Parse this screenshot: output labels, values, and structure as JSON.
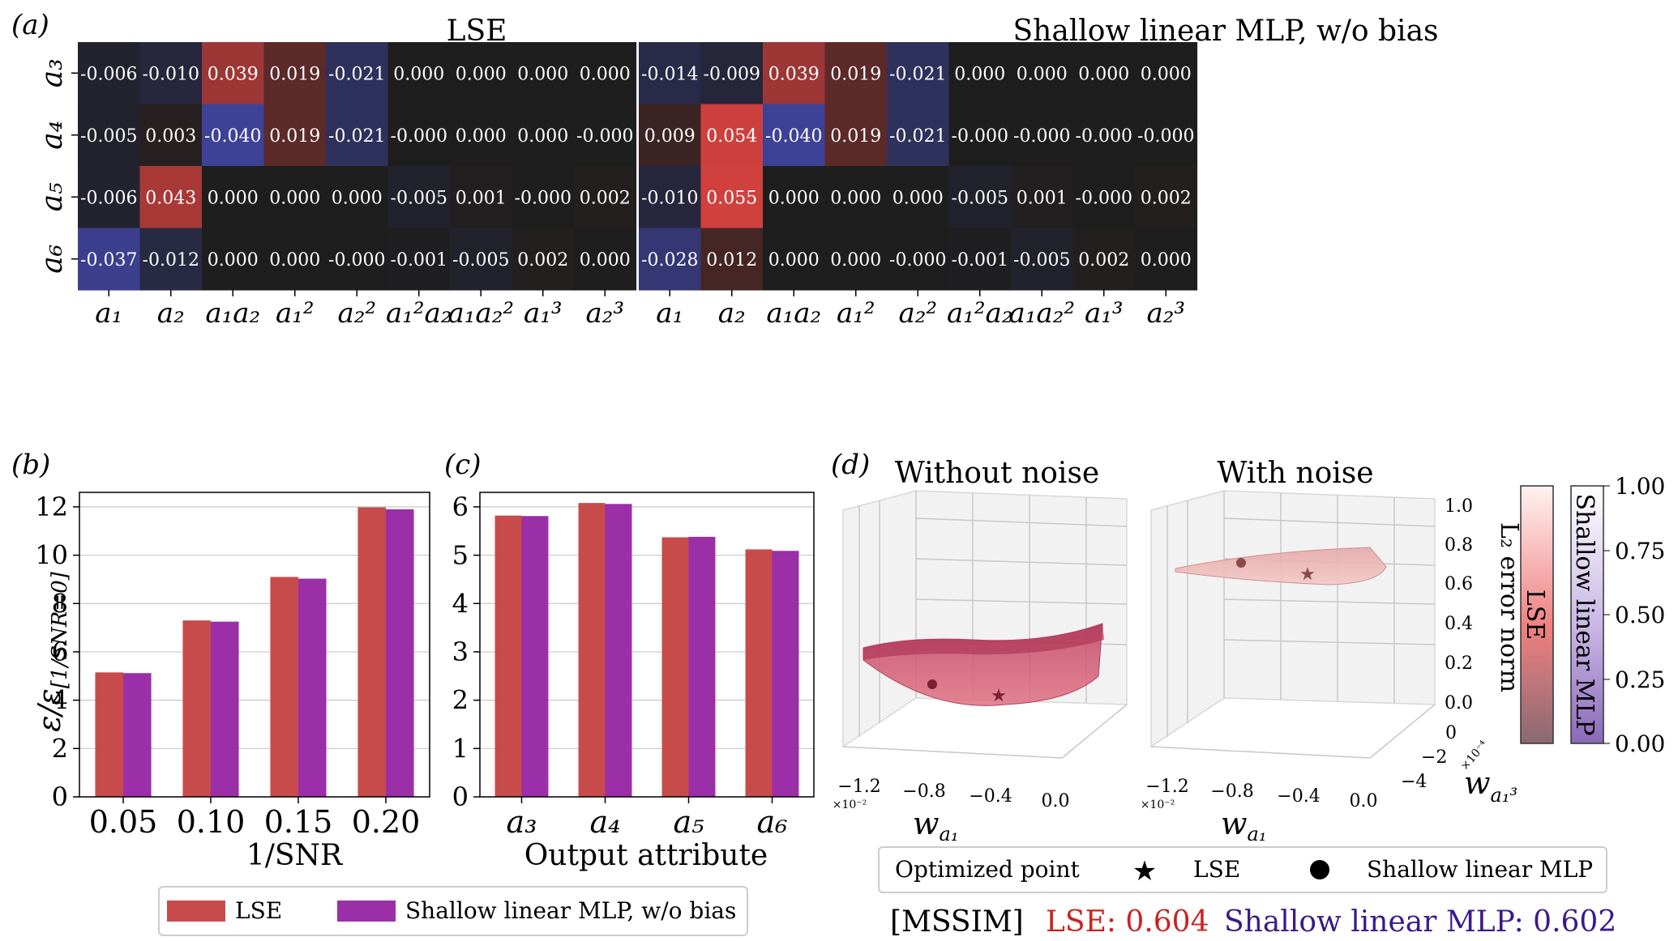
{
  "panel_labels": {
    "a": "(a)",
    "b": "(b)",
    "c": "(c)",
    "d": "(d)"
  },
  "chart_data": [
    {
      "id": "heatmap_lse",
      "type": "heatmap",
      "title": "LSE",
      "rows": [
        "a3",
        "a4",
        "a5",
        "a6"
      ],
      "row_labels": [
        "a₃",
        "a₄",
        "a₅",
        "a₆"
      ],
      "cols": [
        "a1",
        "a2",
        "a1a2",
        "a1^2",
        "a2^2",
        "a1^2a2",
        "a1a2^2",
        "a1^3",
        "a2^3"
      ],
      "col_labels": [
        "a₁",
        "a₂",
        "a₁a₂",
        "a₁²",
        "a₂²",
        "a₁²a₂",
        "a₁a₂²",
        "a₁³",
        "a₂³"
      ],
      "values": [
        [
          -0.006,
          -0.01,
          0.039,
          0.019,
          -0.021,
          0.0,
          0.0,
          0.0,
          0.0
        ],
        [
          -0.005,
          0.003,
          -0.04,
          0.019,
          -0.021,
          -0.0,
          0.0,
          0.0,
          -0.0
        ],
        [
          -0.006,
          0.043,
          0.0,
          0.0,
          0.0,
          -0.005,
          0.001,
          -0.0,
          0.002
        ],
        [
          -0.037,
          -0.012,
          0.0,
          0.0,
          -0.0,
          -0.001,
          -0.005,
          0.002,
          0.0
        ]
      ],
      "labels": [
        [
          "-0.006",
          "-0.010",
          "0.039",
          "0.019",
          "-0.021",
          "0.000",
          "0.000",
          "0.000",
          "0.000"
        ],
        [
          "-0.005",
          "0.003",
          "-0.040",
          "0.019",
          "-0.021",
          "-0.000",
          "0.000",
          "0.000",
          "-0.000"
        ],
        [
          "-0.006",
          "0.043",
          "0.000",
          "0.000",
          "0.000",
          "-0.005",
          "0.001",
          "-0.000",
          "0.002"
        ],
        [
          "-0.037",
          "-0.012",
          "0.000",
          "0.000",
          "-0.000",
          "-0.001",
          "-0.005",
          "0.002",
          "0.000"
        ]
      ],
      "colorscale": {
        "negative": "#4a4fc4",
        "zero": "#1e1e1e",
        "positive": "#d0413e",
        "vmax": 0.055
      }
    },
    {
      "id": "heatmap_mlp",
      "type": "heatmap",
      "title": "Shallow linear MLP, w/o bias",
      "rows": [
        "a3",
        "a4",
        "a5",
        "a6"
      ],
      "cols": [
        "a1",
        "a2",
        "a1a2",
        "a1^2",
        "a2^2",
        "a1^2a2",
        "a1a2^2",
        "a1^3",
        "a2^3"
      ],
      "col_labels": [
        "a₁",
        "a₂",
        "a₁a₂",
        "a₁²",
        "a₂²",
        "a₁²a₂",
        "a₁a₂²",
        "a₁³",
        "a₂³"
      ],
      "values": [
        [
          -0.014,
          -0.009,
          0.039,
          0.019,
          -0.021,
          0.0,
          0.0,
          0.0,
          0.0
        ],
        [
          0.009,
          0.054,
          -0.04,
          0.019,
          -0.021,
          -0.0,
          -0.0,
          -0.0,
          -0.0
        ],
        [
          -0.01,
          0.055,
          0.0,
          0.0,
          0.0,
          -0.005,
          0.001,
          -0.0,
          0.002
        ],
        [
          -0.028,
          0.012,
          0.0,
          0.0,
          -0.0,
          -0.001,
          -0.005,
          0.002,
          0.0
        ]
      ],
      "labels": [
        [
          "-0.014",
          "-0.009",
          "0.039",
          "0.019",
          "-0.021",
          "0.000",
          "0.000",
          "0.000",
          "0.000"
        ],
        [
          "0.009",
          "0.054",
          "-0.040",
          "0.019",
          "-0.021",
          "-0.000",
          "-0.000",
          "-0.000",
          "-0.000"
        ],
        [
          "-0.010",
          "0.055",
          "0.000",
          "0.000",
          "0.000",
          "-0.005",
          "0.001",
          "-0.000",
          "0.002"
        ],
        [
          "-0.028",
          "0.012",
          "0.000",
          "0.000",
          "-0.000",
          "-0.001",
          "-0.005",
          "0.002",
          "0.000"
        ]
      ]
    },
    {
      "id": "bar_snr",
      "type": "bar",
      "categories": [
        "0.05",
        "0.10",
        "0.15",
        "0.20"
      ],
      "series": [
        {
          "name": "LSE",
          "color": "#c84b4b",
          "values": [
            5.15,
            7.3,
            9.1,
            11.98
          ]
        },
        {
          "name": "Shallow linear MLP, w/o bias",
          "color": "#9b2fa8",
          "values": [
            5.12,
            7.25,
            9.03,
            11.9
          ]
        }
      ],
      "xlabel": "1/SNR",
      "ylabel": "ε/ε[1/SNR=0]",
      "ylim": [
        0,
        12.6
      ],
      "yticks": [
        "0",
        "2",
        "4",
        "6",
        "8",
        "10",
        "12"
      ],
      "grid": true
    },
    {
      "id": "bar_attr",
      "type": "bar",
      "categories": [
        "a₃",
        "a₄",
        "a₅",
        "a₆"
      ],
      "series": [
        {
          "name": "LSE",
          "color": "#c84b4b",
          "values": [
            5.82,
            6.08,
            5.37,
            5.12
          ]
        },
        {
          "name": "Shallow linear MLP, w/o bias",
          "color": "#9b2fa8",
          "values": [
            5.81,
            6.06,
            5.38,
            5.09
          ]
        }
      ],
      "xlabel": "Output attribute",
      "ylim": [
        0,
        6.3
      ],
      "yticks": [
        "0",
        "1",
        "2",
        "3",
        "4",
        "5",
        "6"
      ],
      "grid": true
    }
  ],
  "legend_bc": {
    "lse": "LSE",
    "mlp": "Shallow linear MLP, w/o bias"
  },
  "panel_d": {
    "title_left": "Without noise",
    "title_right": "With noise",
    "x_ticks": [
      "−1.2",
      "−0.8",
      "−0.4",
      "0.0"
    ],
    "x_scale": "×10⁻²",
    "x_label": "w",
    "x_label_sub": "a₁",
    "y_ticks": [
      "0",
      "−2",
      "−4"
    ],
    "y_scale": "×10⁻⁴",
    "y_label": "w",
    "y_label_sub": "a₁³",
    "z_ticks": [
      "0.0",
      "0.2",
      "0.4",
      "0.6",
      "0.8",
      "1.0"
    ],
    "z_label": "L₂ error norm",
    "colorbar_ticks": [
      "0.00",
      "0.25",
      "0.50",
      "0.75",
      "1.00"
    ],
    "colorbar_lse": "LSE",
    "colorbar_mlp": "Shallow linear MLP",
    "legend_title": "Optimized point",
    "legend_lse": "LSE",
    "legend_mlp": "Shallow linear MLP"
  },
  "mssim": {
    "label": "[MSSIM]",
    "lse": "LSE: 0.604",
    "mlp": "Shallow linear MLP: 0.602",
    "lse_color": "#cc2222",
    "mlp_color": "#3a1a8a"
  }
}
